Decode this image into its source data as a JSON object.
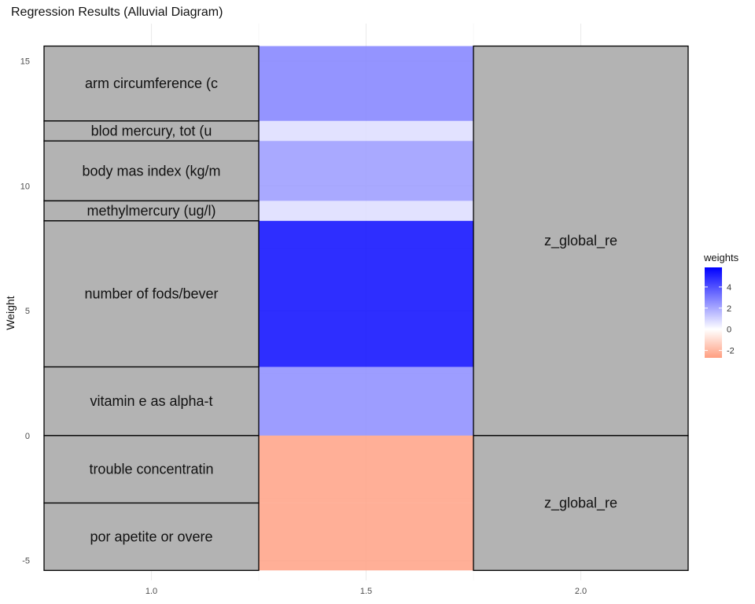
{
  "chart_data": {
    "type": "alluvial",
    "title": "Regression Results (Alluvial Diagram)",
    "ylabel": "Weight",
    "xlabel": "",
    "xlim": [
      0.75,
      2.25
    ],
    "ylim": [
      -5.8,
      16.5
    ],
    "x_ticks": [
      1.0,
      1.5,
      2.0
    ],
    "x_tick_labels": [
      "1.0",
      "1.5",
      "2.0"
    ],
    "y_ticks": [
      -5,
      0,
      5,
      10,
      15
    ],
    "y_tick_labels": [
      "-5",
      "0",
      "5",
      "10",
      "15"
    ],
    "grid": true,
    "stratum_fill": "#b3b3b3",
    "axis1_strata": [
      {
        "label": "arm circumference (c",
        "ymin": 12.6,
        "ymax": 15.6
      },
      {
        "label": "blod mercury, tot (u",
        "ymin": 11.8,
        "ymax": 12.6
      },
      {
        "label": "body mas index (kg/m",
        "ymin": 9.4,
        "ymax": 11.8
      },
      {
        "label": "methylmercury (ug/l)",
        "ymin": 8.6,
        "ymax": 9.4
      },
      {
        "label": "number of fods/bever",
        "ymin": 2.75,
        "ymax": 8.6
      },
      {
        "label": "vitamin e as alpha-t",
        "ymin": 0.0,
        "ymax": 2.75
      },
      {
        "label": "trouble concentratin",
        "ymin": -2.7,
        "ymax": 0.0
      },
      {
        "label": "por apetite or overe",
        "ymin": -5.4,
        "ymax": -2.7
      }
    ],
    "axis2_strata": [
      {
        "label": "z_global_re",
        "ymin": 0.0,
        "ymax": 15.6
      },
      {
        "label": "z_global_re",
        "ymin": -5.4,
        "ymax": 0.0
      }
    ],
    "flows": [
      {
        "ymin": 12.6,
        "ymax": 15.6,
        "weight": 3.0
      },
      {
        "ymin": 11.8,
        "ymax": 12.6,
        "weight": 0.8
      },
      {
        "ymin": 9.4,
        "ymax": 11.8,
        "weight": 2.4
      },
      {
        "ymin": 8.6,
        "ymax": 9.4,
        "weight": 0.8
      },
      {
        "ymin": 2.75,
        "ymax": 8.6,
        "weight": 5.85
      },
      {
        "ymin": 0.0,
        "ymax": 2.75,
        "weight": 2.75
      },
      {
        "ymin": -2.7,
        "ymax": 0.0,
        "weight": -2.7
      },
      {
        "ymin": -5.4,
        "ymax": -2.7,
        "weight": -2.7
      }
    ],
    "legend": {
      "title": "weights",
      "position": "right",
      "min": -2.7,
      "max": 5.85,
      "ticks": [
        -2,
        0,
        2,
        4
      ],
      "tick_labels": [
        "-2",
        "0",
        "2",
        "4"
      ],
      "low_color": "#ff9e80",
      "mid_color": "#ffffff",
      "high_color": "#0000ff"
    }
  }
}
